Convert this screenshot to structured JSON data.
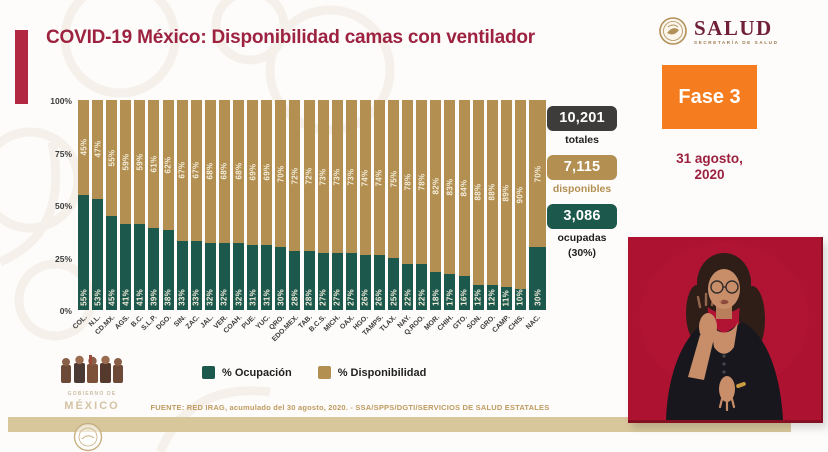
{
  "title": "COVID-19 México: Disponibilidad camas con ventilador",
  "header": {
    "salud_wordmark": "SALUD",
    "salud_subtitle": "SECRETARÍA DE SALUD",
    "fase_badge": "Fase 3",
    "date_line1": "31 agosto,",
    "date_line2": "2020"
  },
  "stats": [
    {
      "value": "10,201",
      "label": "totales"
    },
    {
      "value": "7,115",
      "label": "disponibles"
    },
    {
      "value": "3,086",
      "label": "ocupadas",
      "sublabel": "(30%)"
    }
  ],
  "chart_data": {
    "type": "bar",
    "stacked": true,
    "unit": "%",
    "ylim": [
      0,
      100
    ],
    "yticks": [
      "100%",
      "75%",
      "50%",
      "25%",
      "0%"
    ],
    "grid": false,
    "legend_position": "bottom",
    "last_bar_wide": true,
    "categories": [
      "COL.",
      "N.L.",
      "CD.MX.",
      "AGS.",
      "B.C.",
      "S.L.P.",
      "DGO.",
      "SIN.",
      "ZAC.",
      "JAL.",
      "VER.",
      "COAH.",
      "PUE.",
      "YUC.",
      "QRO.",
      "EDO.MEX.",
      "TAB.",
      "B.C.S.",
      "MICH.",
      "OAX.",
      "HGO.",
      "TAMPS.",
      "TLAX.",
      "NAY.",
      "Q.ROO.",
      "MOR.",
      "CHIH.",
      "GTO.",
      "SON.",
      "GRO.",
      "CAMP.",
      "CHIS.",
      "NAC."
    ],
    "series": [
      {
        "name": "% Ocupación",
        "values": [
          55,
          53,
          45,
          41,
          41,
          39,
          38,
          33,
          33,
          32,
          32,
          32,
          31,
          31,
          30,
          28,
          28,
          27,
          27,
          27,
          26,
          26,
          25,
          22,
          22,
          18,
          17,
          16,
          12,
          12,
          11,
          10,
          30
        ]
      },
      {
        "name": "% Disponibilidad",
        "values": [
          45,
          47,
          55,
          59,
          59,
          61,
          62,
          67,
          67,
          68,
          68,
          68,
          69,
          69,
          70,
          72,
          72,
          73,
          73,
          73,
          74,
          74,
          75,
          78,
          78,
          82,
          83,
          84,
          88,
          88,
          89,
          90,
          70
        ]
      }
    ]
  },
  "legend": [
    {
      "label": "% Ocupación"
    },
    {
      "label": "% Disponibilidad"
    }
  ],
  "footer": {
    "source": "FUENTE: RED IRAG, acumulado del 30 agosto, 2020. -  SSA/SPPS/DGTI/SERVICIOS DE SALUD ESTATALES"
  },
  "gobierno_logo": {
    "line1": "GOBIERNO DE",
    "line2": "MÉXICO"
  },
  "colors": {
    "accent_maroon": "#9c2240",
    "bar_green": "#1c584c",
    "bar_tan": "#b39052",
    "fase_orange": "#f57d1f",
    "stat_dark": "#3d3c3a",
    "band_tan": "#d9c79c",
    "video_crimson": "#ad1230",
    "footer_tan": "#bf9b60"
  }
}
